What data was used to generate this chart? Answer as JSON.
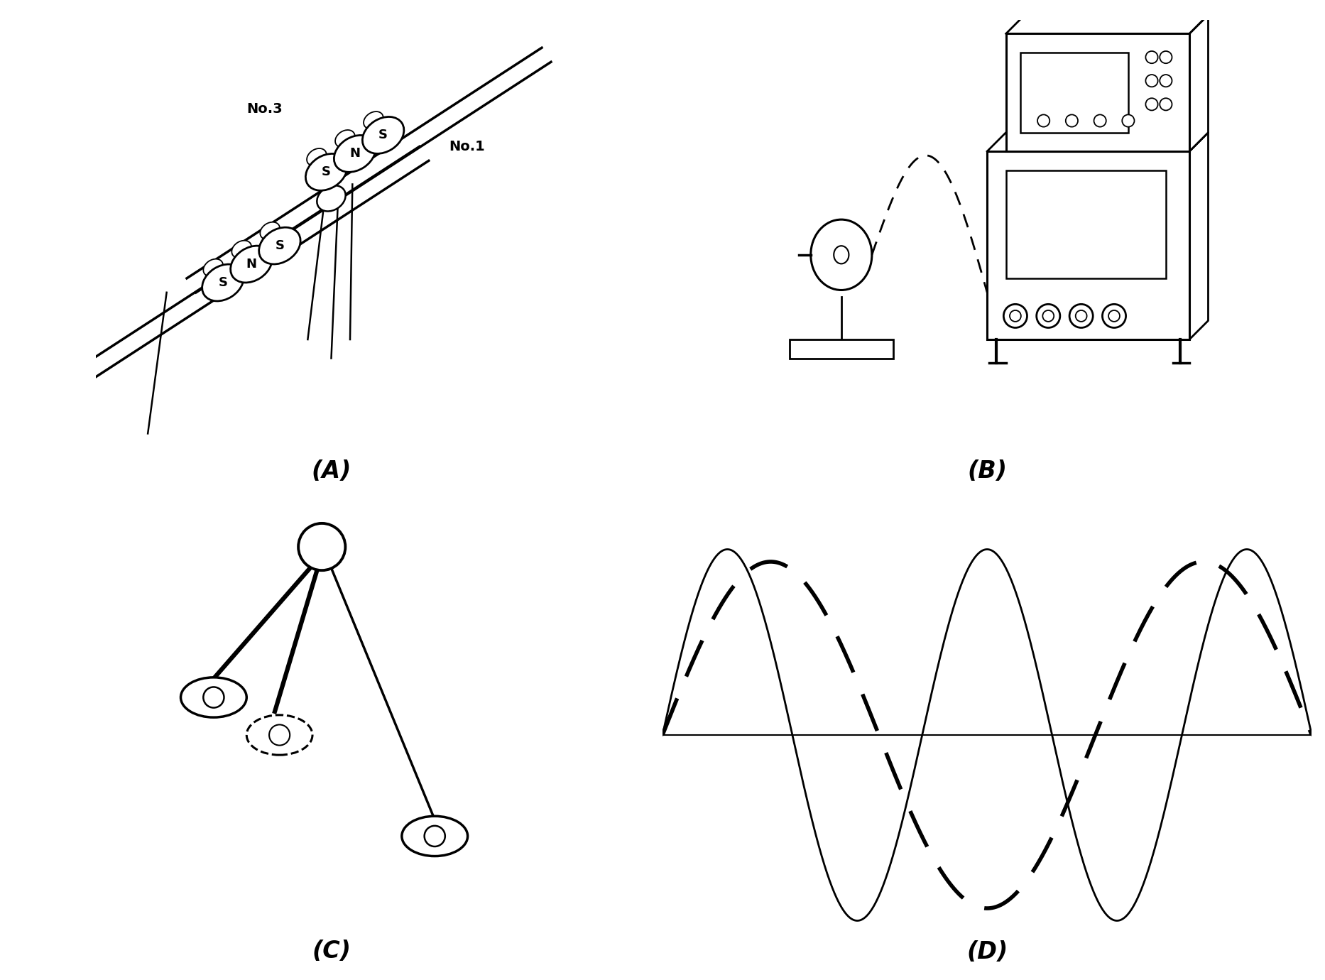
{
  "bg_color": "#ffffff",
  "label_A": "(A)",
  "label_B": "(B)",
  "label_C": "(C)",
  "label_D": "(D)",
  "label_fontsize": 24,
  "label_fontstyle": "italic"
}
